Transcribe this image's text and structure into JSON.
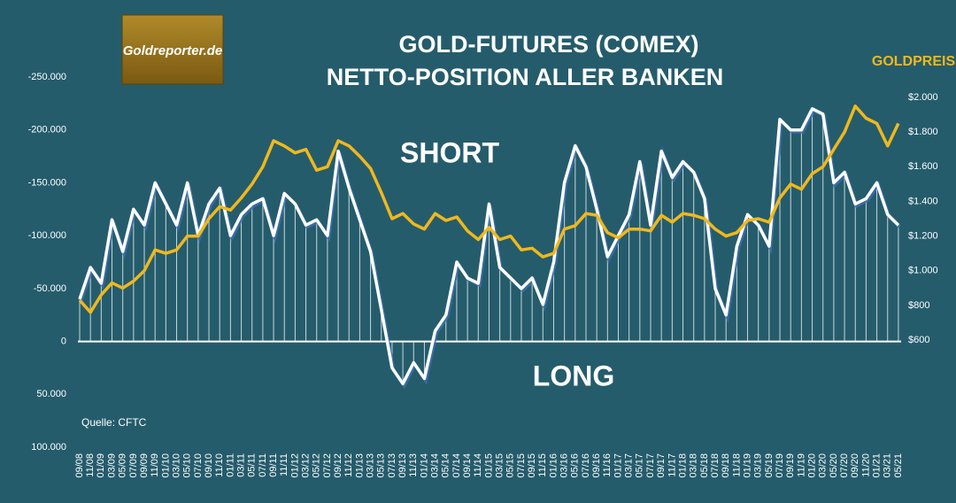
{
  "chart_data": {
    "type": "line",
    "title": "GOLD-FUTURES (COMEX)",
    "subtitle": "NETTO-POSITION ALLER BANKEN",
    "annotations": {
      "short": "SHORT",
      "long": "LONG",
      "source": "Quelle: CFTC",
      "logo": "Goldreporter.de"
    },
    "categories": [
      "09/08",
      "11/08",
      "01/09",
      "03/09",
      "05/09",
      "07/09",
      "09/09",
      "11/09",
      "01/10",
      "03/10",
      "05/10",
      "07/10",
      "09/10",
      "11/10",
      "01/11",
      "03/11",
      "05/11",
      "07/11",
      "09/11",
      "11/11",
      "01/12",
      "03/12",
      "05/12",
      "07/12",
      "09/12",
      "11/12",
      "01/13",
      "03/13",
      "05/13",
      "07/13",
      "09/13",
      "11/13",
      "01/14",
      "03/14",
      "05/14",
      "07/14",
      "09/14",
      "11/14",
      "01/15",
      "03/15",
      "05/15",
      "07/15",
      "09/15",
      "11/15",
      "01/16",
      "03/16",
      "05/16",
      "07/16",
      "09/16",
      "11/16",
      "01/17",
      "03/17",
      "05/17",
      "07/17",
      "09/17",
      "11/17",
      "01/18",
      "03/18",
      "05/18",
      "07/18",
      "09/18",
      "11/18",
      "01/19",
      "03/19",
      "05/19",
      "07/19",
      "09/19",
      "11/19",
      "01/20",
      "03/20",
      "05/20",
      "07/20",
      "09/20",
      "11/20",
      "01/21",
      "03/21",
      "05/21"
    ],
    "series": [
      {
        "color": "#ffffff",
        "values": [
          -40000,
          -70000,
          -55000,
          -115000,
          -85000,
          -125000,
          -110000,
          -150000,
          -130000,
          -110000,
          -150000,
          -100000,
          -130000,
          -145000,
          -100000,
          -120000,
          -130000,
          -135000,
          -100000,
          -140000,
          -130000,
          -110000,
          -115000,
          -100000,
          -180000,
          -145000,
          -115000,
          -85000,
          -30000,
          25000,
          40000,
          20000,
          35000,
          -10000,
          -25000,
          -75000,
          -60000,
          -55000,
          -130000,
          -70000,
          -60000,
          -50000,
          -60000,
          -35000,
          -75000,
          -150000,
          -185000,
          -165000,
          -125000,
          -80000,
          -100000,
          -120000,
          -170000,
          -110000,
          -180000,
          -155000,
          -170000,
          -160000,
          -135000,
          -50000,
          -25000,
          -90000,
          -120000,
          -110000,
          -90000,
          -210000,
          -200000,
          -200000,
          -220000,
          -215000,
          -150000,
          -160000,
          -130000,
          -135000,
          -150000,
          -120000,
          -110000
        ]
      },
      {
        "name": "GOLDPREIS",
        "color": "#f0b81c",
        "axis": "y2",
        "values": [
          830,
          760,
          860,
          930,
          900,
          940,
          1000,
          1120,
          1100,
          1120,
          1200,
          1200,
          1300,
          1370,
          1350,
          1420,
          1500,
          1600,
          1750,
          1720,
          1680,
          1700,
          1580,
          1600,
          1750,
          1720,
          1660,
          1590,
          1450,
          1300,
          1330,
          1270,
          1240,
          1330,
          1290,
          1310,
          1230,
          1180,
          1250,
          1180,
          1200,
          1120,
          1130,
          1080,
          1100,
          1240,
          1260,
          1330,
          1320,
          1220,
          1190,
          1240,
          1240,
          1230,
          1320,
          1280,
          1330,
          1320,
          1300,
          1240,
          1200,
          1220,
          1290,
          1300,
          1280,
          1420,
          1500,
          1470,
          1560,
          1600,
          1700,
          1800,
          1950,
          1880,
          1850,
          1720,
          1850
        ]
      }
    ],
    "ylim": [
      100000,
      -250000
    ],
    "yticks": [
      {
        "value": -250000,
        "label": "-250.000"
      },
      {
        "value": -200000,
        "label": "-200.000"
      },
      {
        "value": -150000,
        "label": "-150.000"
      },
      {
        "value": -100000,
        "label": "-100.000"
      },
      {
        "value": -50000,
        "label": "-50.000"
      },
      0,
      {
        "value": 50000,
        "label": "50.000"
      },
      {
        "value": 100000,
        "label": "100.000"
      }
    ],
    "y2lim": [
      600,
      2000
    ],
    "y2ticks": [
      {
        "value": 600,
        "label": "$600"
      },
      {
        "value": 800,
        "label": "$800"
      },
      {
        "value": 1000,
        "label": "$1.000"
      },
      {
        "value": 1200,
        "label": "$1.200"
      },
      {
        "value": 1400,
        "label": "$1.400"
      },
      {
        "value": 1600,
        "label": "$1.600"
      },
      {
        "value": 1800,
        "label": "$1.800"
      },
      {
        "value": 2000,
        "label": "$2.000"
      }
    ]
  }
}
